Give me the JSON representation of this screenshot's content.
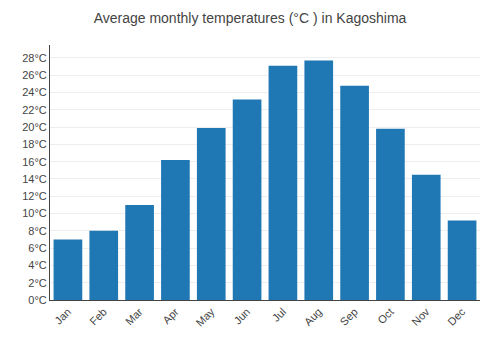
{
  "chart_data": {
    "type": "bar",
    "title": "Average monthly temperatures (°C ) in Kagoshima",
    "categories": [
      "Jan",
      "Feb",
      "Mar",
      "Apr",
      "May",
      "Jun",
      "Jul",
      "Aug",
      "Sep",
      "Oct",
      "Nov",
      "Dec"
    ],
    "values": [
      7.0,
      8.0,
      11.0,
      16.2,
      19.9,
      23.2,
      27.1,
      27.7,
      24.8,
      19.8,
      14.5,
      9.2
    ],
    "ylim": [
      0,
      29.5
    ],
    "yticks": [
      {
        "value": 0,
        "label": "0°C"
      },
      {
        "value": 2,
        "label": "2°C"
      },
      {
        "value": 4,
        "label": "4°C"
      },
      {
        "value": 6,
        "label": "6°C"
      },
      {
        "value": 8,
        "label": "8°C"
      },
      {
        "value": 10,
        "label": "10°C"
      },
      {
        "value": 12,
        "label": "12°C"
      },
      {
        "value": 14,
        "label": "14°C"
      },
      {
        "value": 16,
        "label": "16°C"
      },
      {
        "value": 18,
        "label": "18°C"
      },
      {
        "value": 20,
        "label": "20°C"
      },
      {
        "value": 22,
        "label": "22°C"
      },
      {
        "value": 24,
        "label": "24°C"
      },
      {
        "value": 26,
        "label": "26°C"
      },
      {
        "value": 28,
        "label": "28°C"
      }
    ],
    "grid": true
  }
}
